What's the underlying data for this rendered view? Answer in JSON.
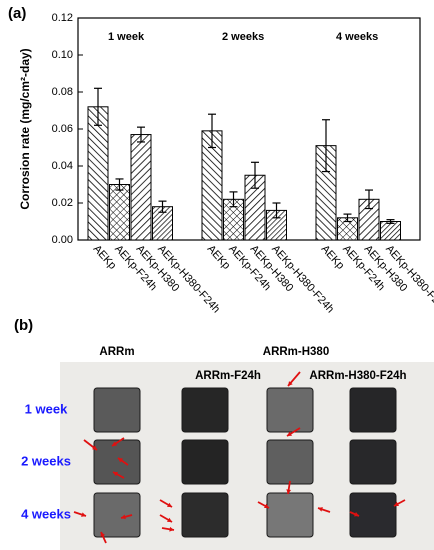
{
  "chart_data": {
    "type": "bar",
    "panel_label": "(a)",
    "ylabel": "Corrosion rate (mg/cm²-day)",
    "categories": [
      "1 week",
      "2 weeks",
      "4 weeks"
    ],
    "series": [
      {
        "name": "AEKp",
        "color": "#000000",
        "pattern": "diag-left",
        "values": [
          0.072,
          0.059,
          0.051
        ],
        "errors": [
          0.01,
          0.009,
          0.014
        ]
      },
      {
        "name": "AEKp-F24h",
        "color": "#000000",
        "pattern": "cross",
        "values": [
          0.03,
          0.022,
          0.012
        ],
        "errors": [
          0.003,
          0.004,
          0.002
        ]
      },
      {
        "name": "AEKp-H380",
        "color": "#000000",
        "pattern": "diag-right",
        "values": [
          0.057,
          0.035,
          0.022
        ],
        "errors": [
          0.004,
          0.007,
          0.005
        ]
      },
      {
        "name": "AEKp-H380-F24h",
        "color": "#000000",
        "pattern": "diag-dense",
        "values": [
          0.018,
          0.016,
          0.01
        ],
        "errors": [
          0.003,
          0.004,
          0.001
        ]
      }
    ],
    "ylim": [
      0,
      0.12
    ],
    "yticks": [
      {
        "value": 0,
        "label": "0.00"
      },
      0.02,
      0.04,
      0.06,
      0.08,
      {
        "value": 0.1,
        "label": "0.10"
      },
      0.12
    ]
  },
  "photo_panel": {
    "panel_label": "(b)",
    "columns": [
      "ARRm",
      "ARRm-F24h",
      "ARRm-H380",
      "ARRm-H380-F24h"
    ],
    "rows": [
      "1 week",
      "2 weeks",
      "4 weeks"
    ]
  }
}
